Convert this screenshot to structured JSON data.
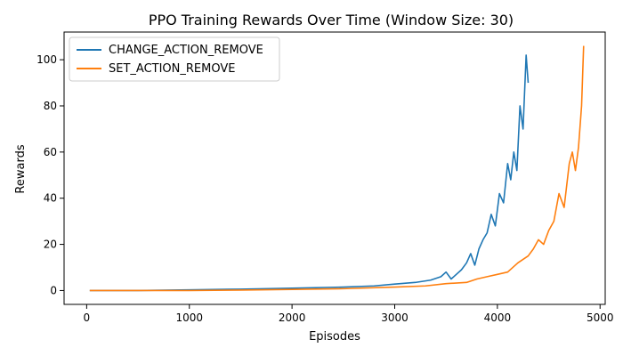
{
  "chart_data": {
    "type": "line",
    "title": "PPO Training Rewards Over Time (Window Size: 30)",
    "xlabel": "Episodes",
    "ylabel": "Rewards",
    "xlim": [
      -220,
      5050
    ],
    "ylim": [
      -6,
      112
    ],
    "xticks": [
      0,
      1000,
      2000,
      3000,
      4000,
      5000
    ],
    "yticks": [
      0,
      20,
      40,
      60,
      80,
      100
    ],
    "grid": false,
    "legend_position": "upper-left",
    "series": [
      {
        "name": "CHANGE_ACTION_REMOVE",
        "color": "#1f77b4",
        "x": [
          30,
          500,
          1000,
          1500,
          2000,
          2500,
          2800,
          3000,
          3200,
          3350,
          3450,
          3500,
          3550,
          3600,
          3650,
          3700,
          3740,
          3780,
          3820,
          3860,
          3900,
          3940,
          3980,
          4020,
          4060,
          4100,
          4130,
          4160,
          4190,
          4220,
          4250,
          4280,
          4300
        ],
        "y": [
          0,
          0,
          0.3,
          0.6,
          1.0,
          1.5,
          2.0,
          2.8,
          3.5,
          4.5,
          6,
          8,
          5,
          7,
          9,
          12,
          16,
          11,
          18,
          22,
          25,
          33,
          28,
          42,
          38,
          55,
          48,
          60,
          52,
          80,
          70,
          102,
          90
        ]
      },
      {
        "name": "SET_ACTION_REMOVE",
        "color": "#ff7f0e",
        "x": [
          30,
          500,
          1000,
          1500,
          2000,
          2500,
          3000,
          3300,
          3500,
          3700,
          3800,
          3900,
          4000,
          4100,
          4200,
          4300,
          4350,
          4400,
          4450,
          4500,
          4550,
          4600,
          4650,
          4700,
          4730,
          4760,
          4790,
          4820,
          4840
        ],
        "y": [
          0,
          0,
          0,
          0.2,
          0.5,
          0.8,
          1.5,
          2.0,
          3.0,
          3.5,
          5.0,
          6.0,
          7.0,
          8.0,
          12,
          15,
          18,
          22,
          20,
          26,
          30,
          42,
          36,
          55,
          60,
          52,
          62,
          80,
          106
        ]
      }
    ]
  }
}
